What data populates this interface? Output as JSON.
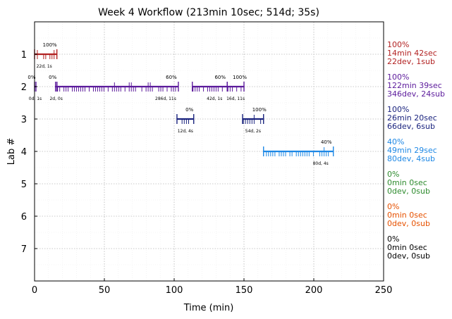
{
  "chart_data": {
    "type": "timeline",
    "title": "Week 4 Workflow (213min 10sec; 514d; 35s)",
    "xlabel": "Time (min)",
    "ylabel": "Lab #",
    "xlim": [
      0,
      250
    ],
    "ylim": [
      8,
      0
    ],
    "xticks": [
      "0",
      "50",
      "100",
      "150",
      "200",
      "250"
    ],
    "yticks": [
      "1",
      "2",
      "3",
      "4",
      "5",
      "6",
      "7"
    ],
    "grid": true,
    "labs": [
      {
        "lab": 1,
        "color": "#b22222",
        "pct": "100%",
        "time": "14min 42sec",
        "counts": "22dev, 1sub",
        "segments": [
          {
            "start": 0,
            "end": 16,
            "pct": "100%",
            "note": "22d, 1s"
          }
        ]
      },
      {
        "lab": 2,
        "color": "#5b1a9b",
        "pct": "100%",
        "time": "122min 39sec",
        "counts": "346dev, 24sub",
        "segments": [
          {
            "start": 0,
            "end": 1,
            "pct": "0%",
            "note": "0d, 1s"
          },
          {
            "start": 15,
            "end": 16,
            "pct": "0%",
            "note": "2d, 0s"
          },
          {
            "start": 16,
            "end": 103,
            "pct": "60%",
            "note": "286d, 11s"
          },
          {
            "start": 113,
            "end": 138,
            "pct": "60%",
            "note": "42d, 1s"
          },
          {
            "start": 138,
            "end": 150,
            "pct": "100%",
            "note": "16d, 11s"
          }
        ]
      },
      {
        "lab": 3,
        "color": "#1a237e",
        "pct": "100%",
        "time": "26min 20sec",
        "counts": "66dev, 6sub",
        "segments": [
          {
            "start": 102,
            "end": 114,
            "pct": "0%",
            "note": "12d, 4s"
          },
          {
            "start": 149,
            "end": 164,
            "pct": "100%",
            "note": "54d, 2s"
          }
        ]
      },
      {
        "lab": 4,
        "color": "#1e88e5",
        "pct": "40%",
        "time": "49min 29sec",
        "counts": "80dev, 4sub",
        "segments": [
          {
            "start": 164,
            "end": 214,
            "pct": "40%",
            "note": "80d, 4s"
          }
        ]
      },
      {
        "lab": 5,
        "color": "#2e8b2e",
        "pct": "0%",
        "time": "0min 0sec",
        "counts": "0dev, 0sub",
        "segments": []
      },
      {
        "lab": 6,
        "color": "#e65100",
        "pct": "0%",
        "time": "0min 0sec",
        "counts": "0dev, 0sub",
        "segments": []
      },
      {
        "lab": 7,
        "color": "#000000",
        "pct": "0%",
        "time": "0min 0sec",
        "counts": "0dev, 0sub",
        "segments": []
      }
    ]
  }
}
